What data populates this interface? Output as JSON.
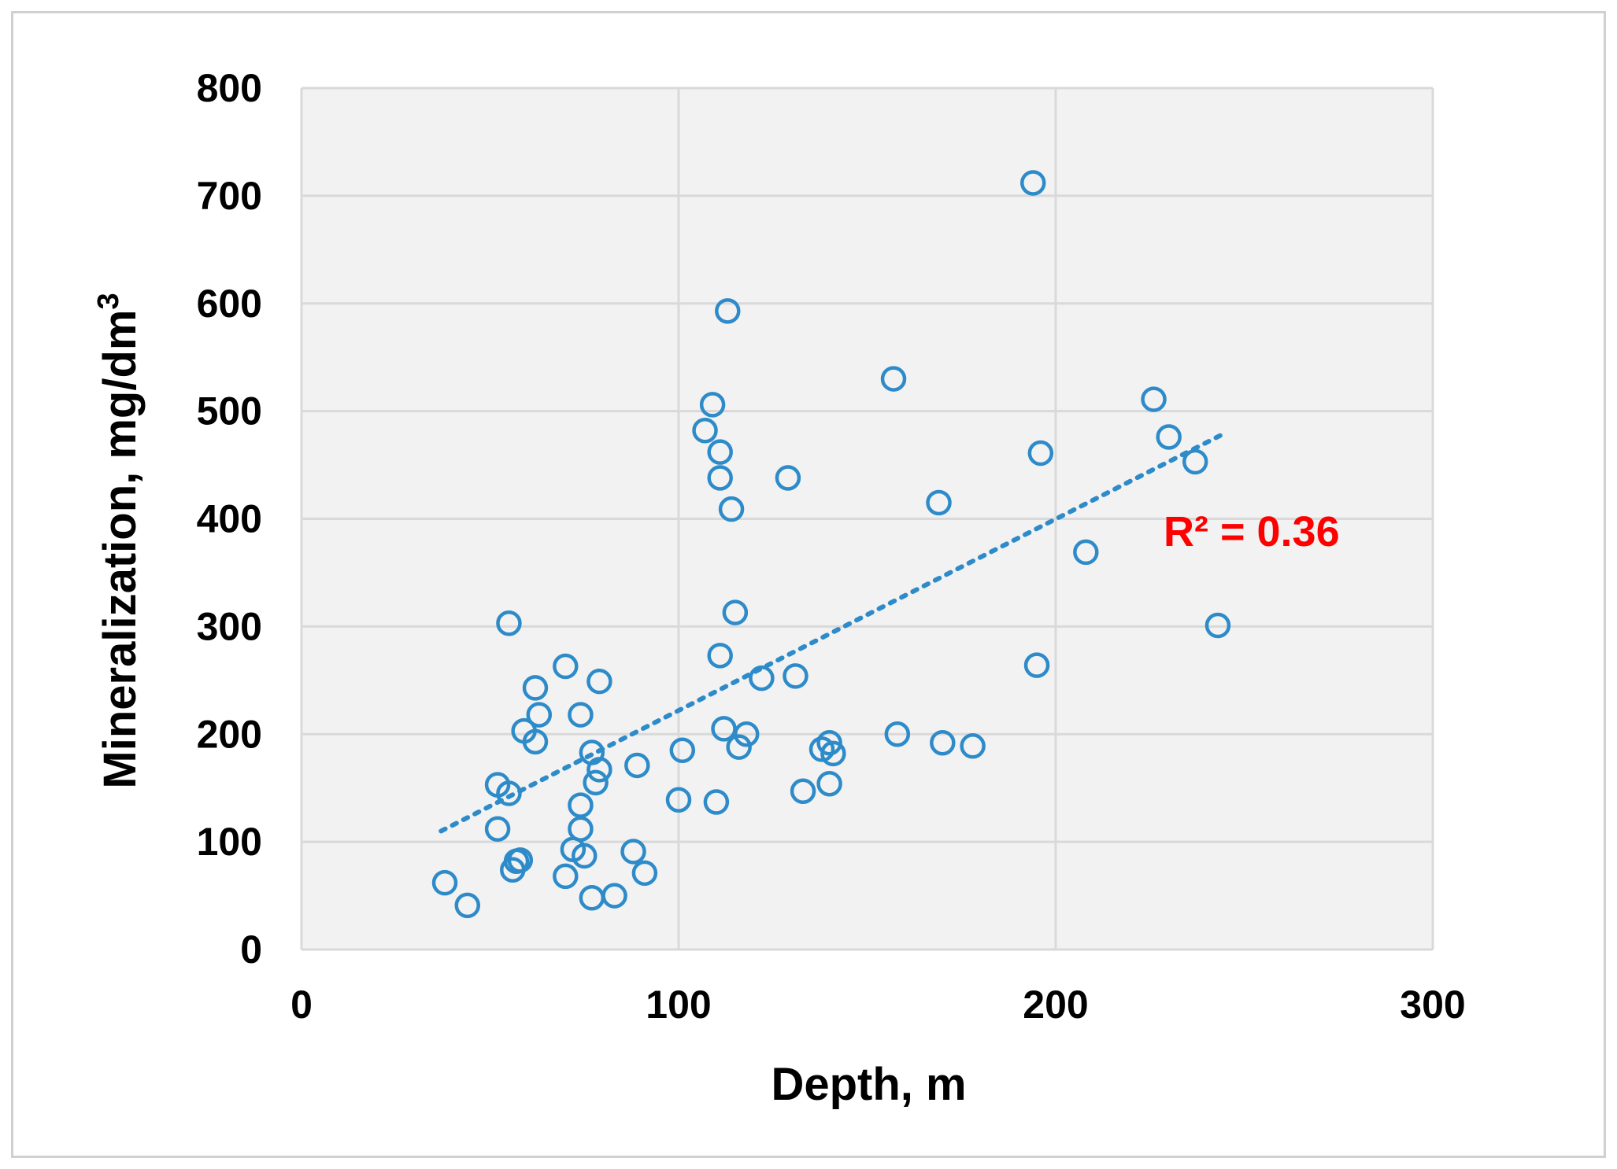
{
  "chart_data": {
    "type": "scatter",
    "xlabel": "Depth, m",
    "ylabel": "Mineralization,  mg/dm",
    "ylabel_sup": "3",
    "xlim": [
      0,
      300
    ],
    "ylim": [
      0,
      800
    ],
    "x_ticks": [
      "0",
      "100",
      "200",
      "300"
    ],
    "y_ticks": [
      "0",
      "100",
      "200",
      "300",
      "400",
      "500",
      "600",
      "700",
      "800"
    ],
    "grid": true,
    "legend": "none",
    "marker": "hollow-circle",
    "colors": {
      "marker": "#2e8bc9",
      "plot_bg": "#f2f2f2",
      "grid": "#d9d9d9",
      "annotation": "#ff0000",
      "frame": "#d0d0d0"
    },
    "trendline": {
      "style": "dotted",
      "from": [
        37,
        110
      ],
      "to": [
        244,
        478
      ]
    },
    "annotation": {
      "text": "R² = 0.36"
    },
    "series": [
      {
        "points": [
          [
            38,
            62
          ],
          [
            44,
            41
          ],
          [
            52,
            112
          ],
          [
            52,
            153
          ],
          [
            55,
            145
          ],
          [
            55,
            303
          ],
          [
            56,
            74
          ],
          [
            57,
            82
          ],
          [
            58,
            83
          ],
          [
            59,
            203
          ],
          [
            62,
            193
          ],
          [
            62,
            243
          ],
          [
            63,
            218
          ],
          [
            70,
            263
          ],
          [
            70,
            68
          ],
          [
            72,
            93
          ],
          [
            74,
            218
          ],
          [
            74,
            134
          ],
          [
            74,
            112
          ],
          [
            75,
            87
          ],
          [
            77,
            183
          ],
          [
            77,
            48
          ],
          [
            78,
            155
          ],
          [
            79,
            167
          ],
          [
            79,
            249
          ],
          [
            83,
            50
          ],
          [
            88,
            91
          ],
          [
            89,
            171
          ],
          [
            91,
            71
          ],
          [
            100,
            139
          ],
          [
            101,
            185
          ],
          [
            107,
            482
          ],
          [
            109,
            506
          ],
          [
            110,
            137
          ],
          [
            111,
            462
          ],
          [
            111,
            438
          ],
          [
            111,
            273
          ],
          [
            112,
            205
          ],
          [
            113,
            593
          ],
          [
            114,
            409
          ],
          [
            115,
            313
          ],
          [
            116,
            188
          ],
          [
            118,
            200
          ],
          [
            122,
            252
          ],
          [
            129,
            438
          ],
          [
            131,
            254
          ],
          [
            133,
            147
          ],
          [
            138,
            186
          ],
          [
            140,
            154
          ],
          [
            140,
            192
          ],
          [
            141,
            182
          ],
          [
            157,
            530
          ],
          [
            158,
            200
          ],
          [
            169,
            415
          ],
          [
            170,
            192
          ],
          [
            178,
            189
          ],
          [
            194,
            712
          ],
          [
            195,
            264
          ],
          [
            196,
            461
          ],
          [
            208,
            369
          ],
          [
            226,
            511
          ],
          [
            230,
            476
          ],
          [
            237,
            453
          ],
          [
            243,
            301
          ]
        ]
      }
    ]
  }
}
